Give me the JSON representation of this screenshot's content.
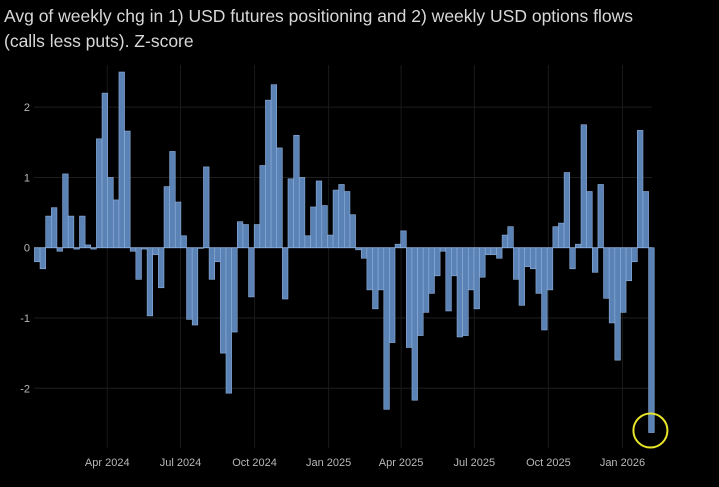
{
  "chart_data": {
    "type": "bar",
    "title_lines": [
      "Avg of weekly chg in 1) USD futures positioning and 2) weekly USD options flows",
      "(calls less puts). Z-score"
    ],
    "xlabel": "",
    "ylabel": "",
    "ylim": [
      -2.85,
      2.6
    ],
    "yticks": [
      -2,
      -1,
      0,
      1,
      2
    ],
    "xticks": [
      {
        "date": "2024-04-01",
        "label": "Apr 2024"
      },
      {
        "date": "2024-07-01",
        "label": "Jul 2024"
      },
      {
        "date": "2024-10-01",
        "label": "Oct 2024"
      },
      {
        "date": "2025-01-01",
        "label": "Jan 2025"
      },
      {
        "date": "2025-04-01",
        "label": "Apr 2025"
      },
      {
        "date": "2025-07-01",
        "label": "Jul 2025"
      },
      {
        "date": "2025-10-01",
        "label": "Oct 2025"
      },
      {
        "date": "2026-01-01",
        "label": "Jan 2026"
      }
    ],
    "grid": true,
    "bar_color": "#5b82b5",
    "bar_edge_color": "#8fb0dc",
    "annotation": {
      "type": "circle",
      "target": "last bar",
      "color": "#e8e42a"
    },
    "x": [
      "2024-01-05",
      "2024-01-12",
      "2024-01-19",
      "2024-01-26",
      "2024-02-02",
      "2024-02-09",
      "2024-02-16",
      "2024-02-23",
      "2024-03-01",
      "2024-03-08",
      "2024-03-15",
      "2024-03-22",
      "2024-03-29",
      "2024-04-05",
      "2024-04-12",
      "2024-04-19",
      "2024-04-26",
      "2024-05-03",
      "2024-05-10",
      "2024-05-17",
      "2024-05-24",
      "2024-05-31",
      "2024-06-07",
      "2024-06-14",
      "2024-06-21",
      "2024-06-28",
      "2024-07-05",
      "2024-07-12",
      "2024-07-19",
      "2024-07-26",
      "2024-08-02",
      "2024-08-09",
      "2024-08-16",
      "2024-08-23",
      "2024-08-30",
      "2024-09-06",
      "2024-09-13",
      "2024-09-20",
      "2024-09-27",
      "2024-10-04",
      "2024-10-11",
      "2024-10-18",
      "2024-10-25",
      "2024-11-01",
      "2024-11-08",
      "2024-11-15",
      "2024-11-22",
      "2024-11-29",
      "2024-12-06",
      "2024-12-13",
      "2024-12-20",
      "2024-12-27",
      "2025-01-03",
      "2025-01-10",
      "2025-01-17",
      "2025-01-24",
      "2025-01-31",
      "2025-02-07",
      "2025-02-14",
      "2025-02-21",
      "2025-02-28",
      "2025-03-07",
      "2025-03-14",
      "2025-03-21",
      "2025-03-28",
      "2025-04-04",
      "2025-04-11",
      "2025-04-18",
      "2025-04-25",
      "2025-05-02",
      "2025-05-09",
      "2025-05-16",
      "2025-05-23",
      "2025-05-30",
      "2025-06-06",
      "2025-06-13",
      "2025-06-20",
      "2025-06-27",
      "2025-07-04",
      "2025-07-11",
      "2025-07-18",
      "2025-07-25",
      "2025-08-01",
      "2025-08-08",
      "2025-08-15",
      "2025-08-22",
      "2025-08-29",
      "2025-09-05",
      "2025-09-12",
      "2025-09-19",
      "2025-09-26",
      "2025-10-03",
      "2025-10-10",
      "2025-10-17",
      "2025-10-24",
      "2025-10-31",
      "2025-11-07",
      "2025-11-14",
      "2025-11-21",
      "2025-11-28",
      "2025-12-05",
      "2025-12-12",
      "2025-12-19",
      "2025-12-26",
      "2026-01-02",
      "2026-01-09",
      "2026-01-16",
      "2026-01-23",
      "2026-01-30",
      "2026-02-06"
    ],
    "values": [
      -0.2,
      -0.3,
      0.45,
      0.57,
      -0.05,
      1.05,
      0.45,
      -0.02,
      0.45,
      0.04,
      -0.02,
      1.55,
      2.2,
      1.0,
      0.68,
      2.5,
      1.66,
      -0.05,
      -0.45,
      -0.02,
      -0.97,
      -0.1,
      -0.57,
      0.87,
      1.37,
      0.65,
      0.17,
      -1.02,
      -1.1,
      -0.01,
      1.15,
      -0.45,
      -0.2,
      -1.5,
      -2.07,
      -1.2,
      0.37,
      0.33,
      -0.7,
      0.33,
      1.17,
      2.1,
      2.32,
      1.42,
      -0.73,
      0.98,
      1.6,
      1.0,
      0.17,
      0.58,
      0.95,
      0.6,
      0.18,
      0.82,
      0.9,
      0.8,
      0.47,
      -0.03,
      -0.15,
      -0.6,
      -0.87,
      -0.6,
      -2.3,
      -1.35,
      0.05,
      0.24,
      -1.42,
      -2.17,
      -1.25,
      -0.92,
      -0.65,
      -0.4,
      -0.05,
      -0.9,
      -0.4,
      -1.27,
      -1.25,
      -0.6,
      -0.87,
      -0.42,
      -0.1,
      -0.1,
      -0.15,
      0.18,
      0.3,
      -0.45,
      -0.82,
      -0.27,
      -0.3,
      -0.65,
      -1.17,
      -0.6,
      0.3,
      0.35,
      1.07,
      -0.3,
      0.05,
      1.75,
      0.8,
      -0.35,
      0.9,
      -0.72,
      -1.07,
      -1.6,
      -0.92,
      -0.47,
      -0.2,
      1.67,
      0.8,
      -2.63
    ]
  }
}
